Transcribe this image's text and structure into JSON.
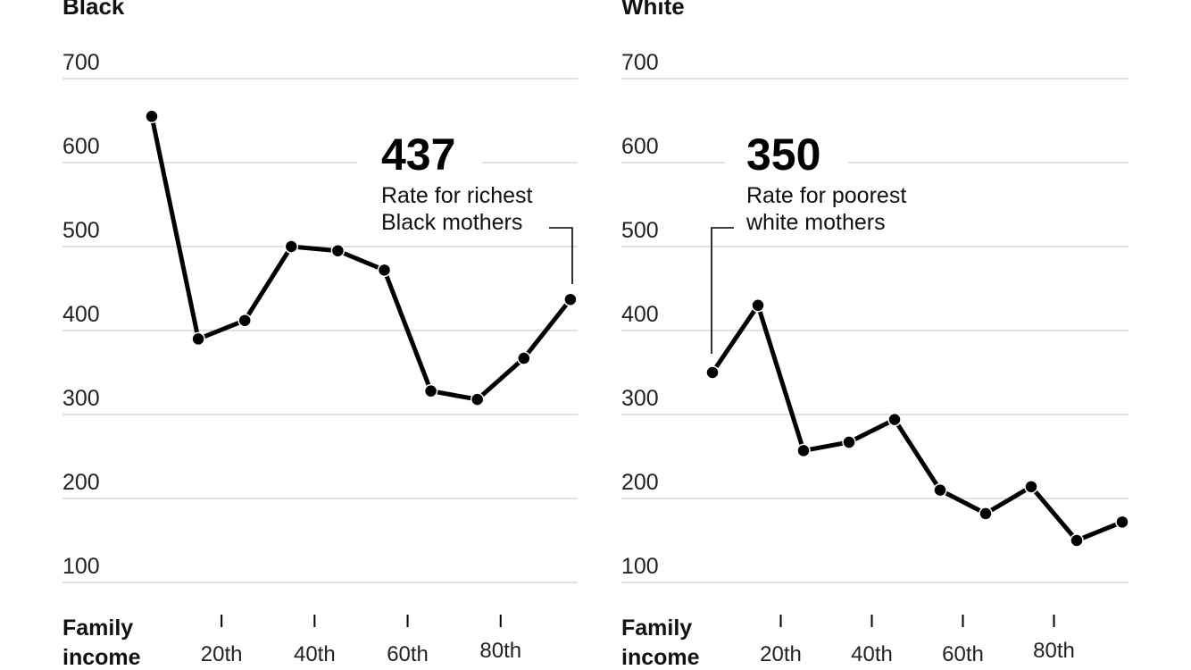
{
  "chart_data": [
    {
      "type": "line",
      "title": "Black",
      "xlabel": "Family income",
      "x_tick_labels": [
        "20th",
        "40th",
        "60th",
        "80th"
      ],
      "x": [
        1,
        2,
        3,
        4,
        5,
        6,
        7,
        8,
        9,
        10
      ],
      "values": [
        655,
        390,
        412,
        500,
        495,
        472,
        328,
        318,
        367,
        437
      ],
      "ylim": [
        100,
        700
      ],
      "y_ticks": [
        700,
        600,
        500,
        400,
        300,
        200,
        100
      ],
      "grid": true,
      "annotation": {
        "value": "437",
        "lines": [
          "Rate for richest",
          "Black mothers"
        ],
        "point_index": 9
      }
    },
    {
      "type": "line",
      "title": "White",
      "xlabel": "Family income",
      "x_tick_labels": [
        "20th",
        "40th",
        "60th",
        "80th"
      ],
      "x": [
        1,
        2,
        3,
        4,
        5,
        6,
        7,
        8,
        9,
        10
      ],
      "values": [
        350,
        430,
        257,
        267,
        294,
        210,
        182,
        214,
        150,
        172
      ],
      "ylim": [
        100,
        700
      ],
      "y_ticks": [
        700,
        600,
        500,
        400,
        300,
        200,
        100
      ],
      "grid": true,
      "annotation": {
        "value": "350",
        "lines": [
          "Rate for poorest",
          "white mothers"
        ],
        "point_index": 0
      }
    }
  ]
}
